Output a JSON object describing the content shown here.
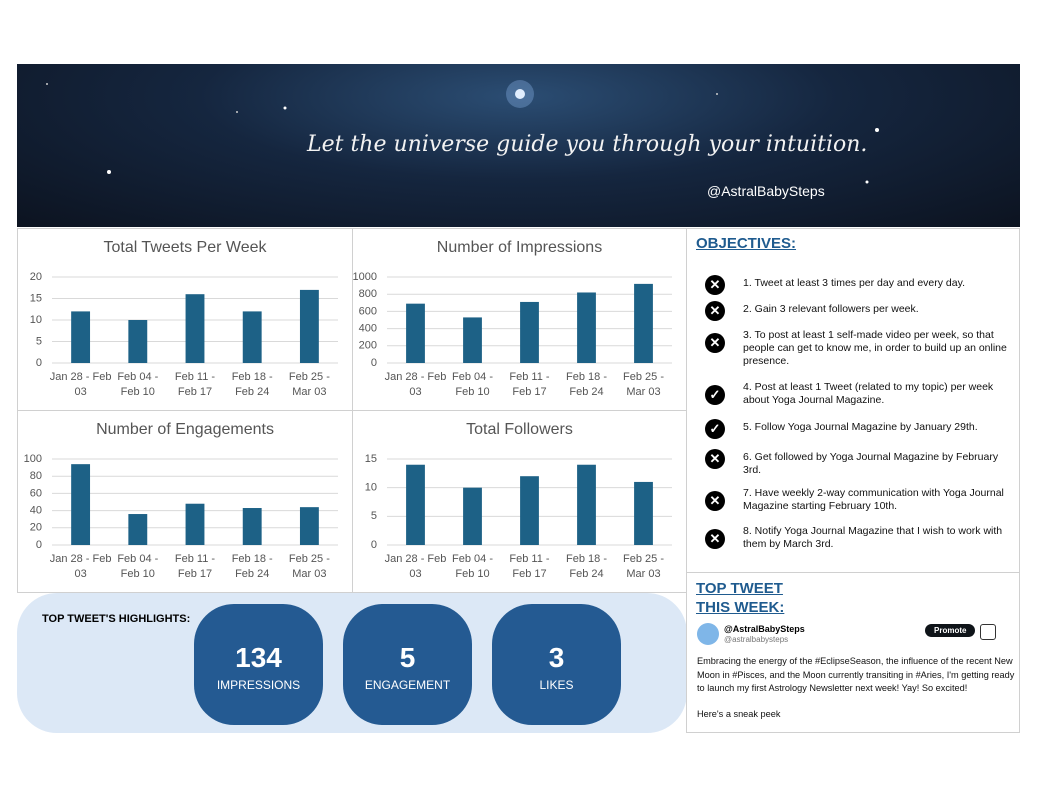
{
  "banner": {
    "quote": "Let the universe guide you through your intuition.",
    "handle": "@AstralBabySteps"
  },
  "chart_data": [
    {
      "type": "bar",
      "title": "Total Tweets Per Week",
      "categories": [
        "Jan 28 - Feb 03",
        "Feb 04 - Feb 10",
        "Feb 11 - Feb 17",
        "Feb 18 - Feb 24",
        "Feb 25 - Mar 03"
      ],
      "values": [
        12,
        10,
        16,
        12,
        17
      ],
      "color": "#1d6186",
      "ylim": [
        0,
        20
      ],
      "yticks": [
        0,
        5,
        10,
        15,
        20
      ],
      "grid": true
    },
    {
      "type": "bar",
      "title": "Number of Impressions",
      "categories": [
        "Jan 28 - Feb 03",
        "Feb 04 - Feb 10",
        "Feb 11 - Feb 17",
        "Feb 18 - Feb 24",
        "Feb 25 - Mar 03"
      ],
      "values": [
        690,
        530,
        710,
        820,
        920
      ],
      "color": "#1d6186",
      "ylim": [
        0,
        1000
      ],
      "yticks": [
        0,
        200,
        400,
        600,
        800,
        1000
      ],
      "grid": true
    },
    {
      "type": "bar",
      "title": "Number of Engagements",
      "categories": [
        "Jan 28 - Feb 03",
        "Feb 04 - Feb 10",
        "Feb 11 - Feb 17",
        "Feb 18 - Feb 24",
        "Feb 25 - Mar 03"
      ],
      "values": [
        94,
        36,
        48,
        43,
        44
      ],
      "color": "#1d6186",
      "ylim": [
        0,
        100
      ],
      "yticks": [
        0,
        20,
        40,
        60,
        80,
        100
      ],
      "grid": true
    },
    {
      "type": "bar",
      "title": "Total Followers",
      "categories": [
        "Jan 28 - Feb 03",
        "Feb 04 - Feb 10",
        "Feb 11 - Feb 17",
        "Feb 18 - Feb 24",
        "Feb 25 - Mar 03"
      ],
      "values": [
        14,
        10,
        12,
        14,
        11
      ],
      "color": "#1d6186",
      "ylim": [
        0,
        15
      ],
      "yticks": [
        0,
        5,
        10,
        15
      ],
      "grid": true
    }
  ],
  "objectives": {
    "title": "OBJECTIVES:",
    "items": [
      {
        "text": "1. Tweet at least 3 times per day and every day.",
        "done": false
      },
      {
        "text": "2. Gain 3 relevant followers per week.",
        "done": false
      },
      {
        "text": "3. To post at least 1 self-made video per week, so that people can get to know me, in order to build up an online presence.",
        "done": false
      },
      {
        "text": "4. Post at least 1 Tweet (related to my topic) per week about Yoga Journal Magazine.",
        "done": true
      },
      {
        "text": "5. Follow Yoga Journal Magazine by January 29th.",
        "done": true
      },
      {
        "text": "6. Get followed by Yoga Journal Magazine by February 3rd.",
        "done": false
      },
      {
        "text": "7. Have weekly 2-way communication with Yoga Journal Magazine starting February 10th.",
        "done": false
      },
      {
        "text": "8. Notify Yoga Journal Magazine that I wish to work with them by March 3rd.",
        "done": false
      }
    ]
  },
  "highlights": {
    "title": "TOP TWEET'S HIGHLIGHTS:",
    "items": [
      {
        "value": "134",
        "label": "IMPRESSIONS"
      },
      {
        "value": "5",
        "label": "ENGAGEMENT"
      },
      {
        "value": "3",
        "label": "LIKES"
      }
    ]
  },
  "top_tweet": {
    "title": "TOP TWEET THIS WEEK:",
    "name": "@AstralBabySteps",
    "handle": "@astralbabysteps",
    "button": "Promote",
    "text": "Embracing the energy of the #EclipseSeason, the influence of the recent New Moon in #Pisces, and the Moon currently transiting in #Aries, I'm getting ready to launch my first Astrology Newsletter next week! Yay! So excited!",
    "footer": "Here's a sneak peek"
  }
}
